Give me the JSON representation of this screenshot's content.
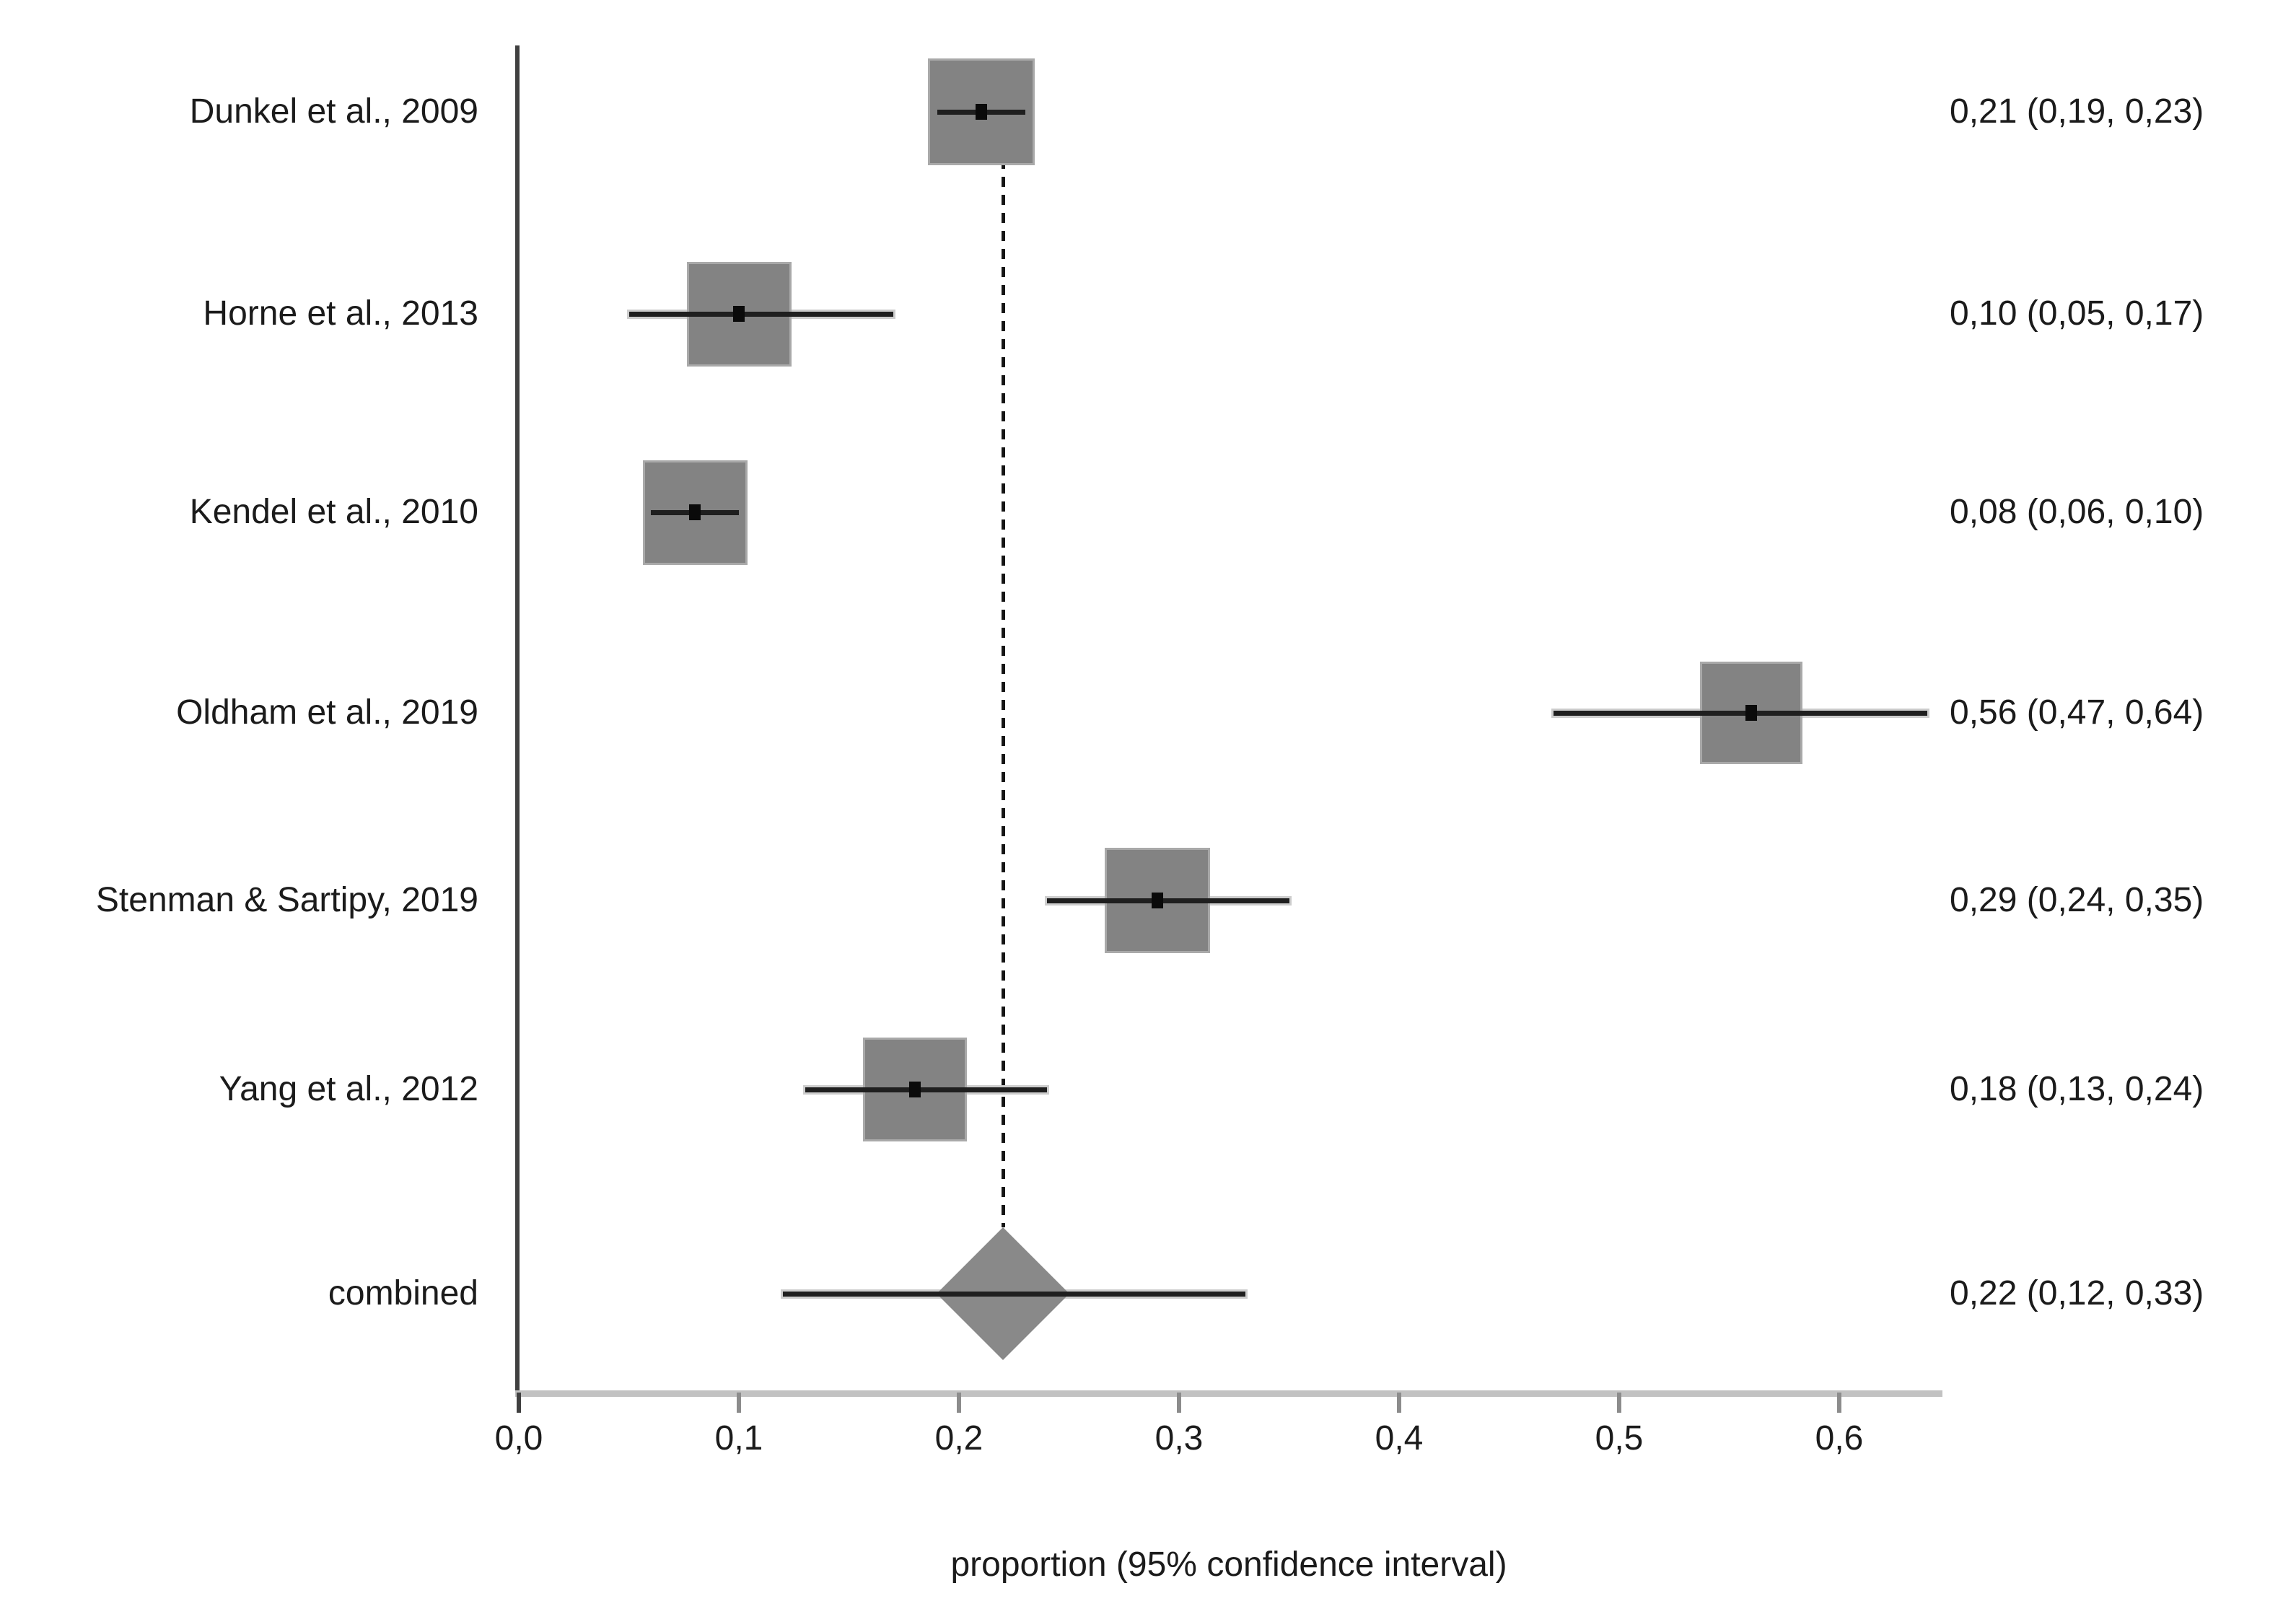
{
  "chart_data": {
    "type": "forest",
    "title": "",
    "xlabel": "proportion (95% confidence interval)",
    "x_axis": {
      "min": 0.0,
      "max": 0.64,
      "tick_values": [
        0.0,
        0.1,
        0.2,
        0.3,
        0.4,
        0.5,
        0.6
      ],
      "tick_labels": [
        "0,0",
        "0,1",
        "0,2",
        "0,3",
        "0,4",
        "0,5",
        "0,6"
      ],
      "decimal_separator": ",",
      "grid": false
    },
    "reference_line": {
      "x": 0.22,
      "style": "dashed"
    },
    "studies": [
      {
        "label": "Dunkel et al., 2009",
        "estimate": 0.21,
        "ci_low": 0.19,
        "ci_high": 0.23,
        "value_label": "0,21 (0,19, 0,23)",
        "marker": "square",
        "marker_size_px": 148
      },
      {
        "label": "Horne et al., 2013",
        "estimate": 0.1,
        "ci_low": 0.05,
        "ci_high": 0.17,
        "value_label": "0,10 (0,05, 0,17)",
        "marker": "square",
        "marker_size_px": 145
      },
      {
        "label": "Kendel et al., 2010",
        "estimate": 0.08,
        "ci_low": 0.06,
        "ci_high": 0.1,
        "value_label": "0,08 (0,06, 0,10)",
        "marker": "square",
        "marker_size_px": 145
      },
      {
        "label": "Oldham et al., 2019",
        "estimate": 0.56,
        "ci_low": 0.47,
        "ci_high": 0.64,
        "value_label": "0,56 (0,47, 0,64)",
        "marker": "square",
        "marker_size_px": 142
      },
      {
        "label": "Stenman & Sartipy, 2019",
        "estimate": 0.29,
        "ci_low": 0.24,
        "ci_high": 0.35,
        "value_label": "0,29 (0,24, 0,35)",
        "marker": "square",
        "marker_size_px": 146
      },
      {
        "label": "Yang et al., 2012",
        "estimate": 0.18,
        "ci_low": 0.13,
        "ci_high": 0.24,
        "value_label": "0,18 (0,13, 0,24)",
        "marker": "square",
        "marker_size_px": 144
      },
      {
        "label": "combined",
        "estimate": 0.22,
        "ci_low": 0.12,
        "ci_high": 0.33,
        "value_label": "0,22 (0,12, 0,33)",
        "marker": "diamond",
        "marker_width_px": 184,
        "marker_height_px": 184
      }
    ],
    "colors": {
      "background": "#ffffff",
      "square_fill": "#838383",
      "square_edge": "#a9a9a9",
      "diamond_fill": "#898989",
      "ci_line": "#1f1f1f",
      "ci_halo": "#cdcdcd",
      "point": "#0a0a0a",
      "x_axis_line": "#c2c2c2",
      "y_axis_line": "#404040",
      "tick": "#8c8c8c",
      "reference_line": "#151515",
      "text": "#1b1b1b"
    }
  }
}
